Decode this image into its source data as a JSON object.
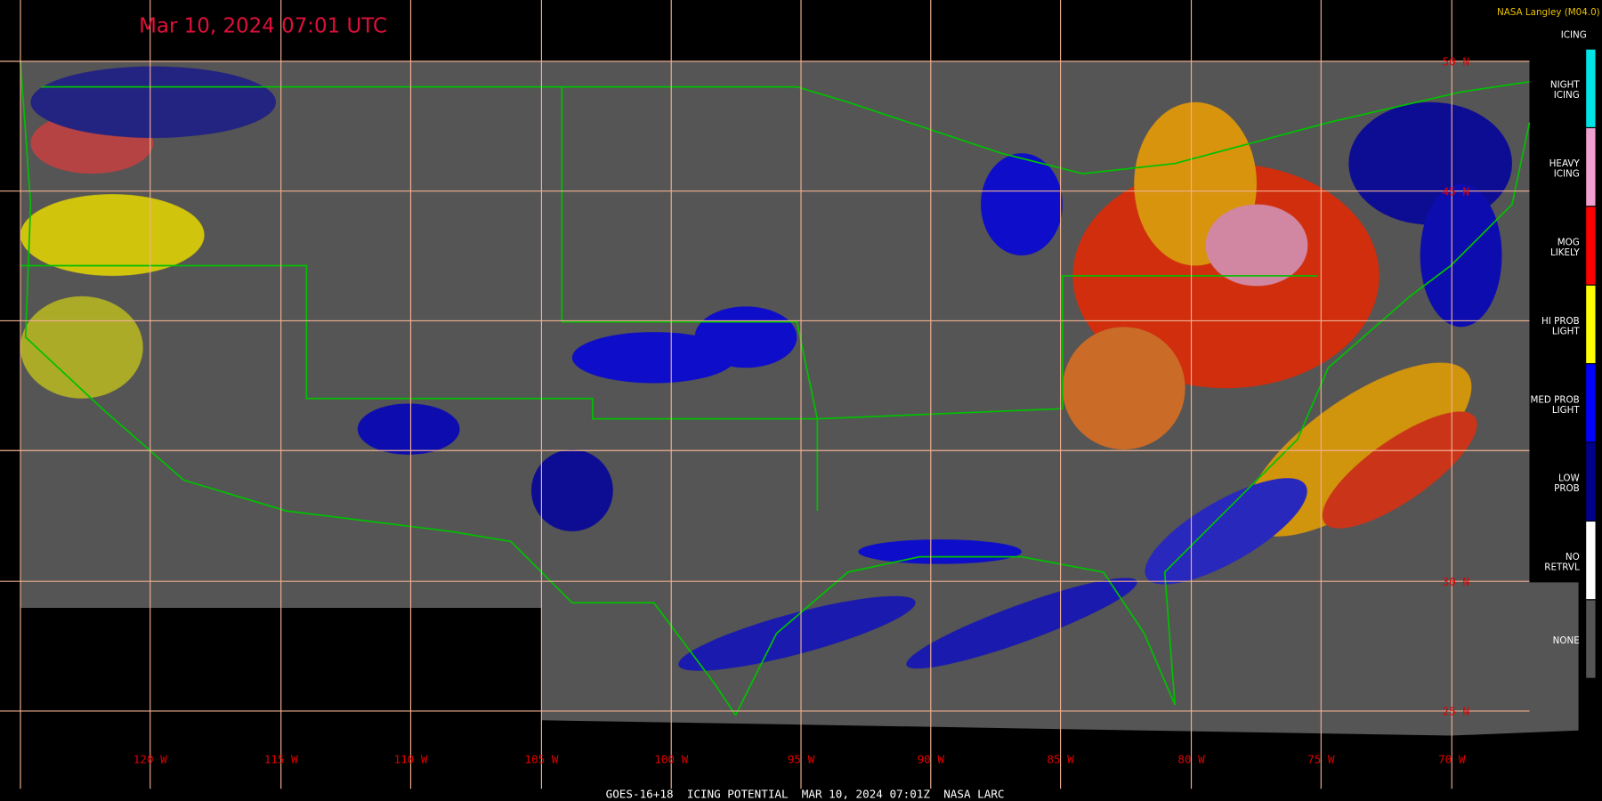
{
  "header": {
    "title": "Mar 10, 2024 07:01 UTC",
    "credit": "NASA Langley (M04.0)"
  },
  "legend": {
    "title": "ICING",
    "items": [
      {
        "lines": [
          "NIGHT",
          "ICING"
        ],
        "color": "#00e5e5"
      },
      {
        "lines": [
          "HEAVY",
          "ICING"
        ],
        "color": "#f0a0d0"
      },
      {
        "lines": [
          "MOG",
          "LIKELY"
        ],
        "color": "#ff0000"
      },
      {
        "lines": [
          "HI PROB",
          "LIGHT"
        ],
        "color": "#ffff00"
      },
      {
        "lines": [
          "MED PROB",
          "LIGHT"
        ],
        "color": "#0000ff"
      },
      {
        "lines": [
          "LOW",
          "PROB"
        ],
        "color": "#00008b"
      },
      {
        "lines": [
          "NO",
          "RETRVL"
        ],
        "color": "#ffffff"
      },
      {
        "lines": [
          "NONE"
        ],
        "color": "#555555"
      }
    ]
  },
  "map": {
    "longitude_labels": [
      "120 W",
      "115 W",
      "110 W",
      "105 W",
      "100 W",
      "95 W",
      "90 W",
      "85 W",
      "80 W",
      "75 W",
      "70 W"
    ],
    "latitude_labels": [
      "50 N",
      "45 N",
      "30 N",
      "25 N"
    ]
  },
  "footer": "GOES-16+18  ICING POTENTIAL  MAR 10, 2024 07:01Z  NASA LARC"
}
